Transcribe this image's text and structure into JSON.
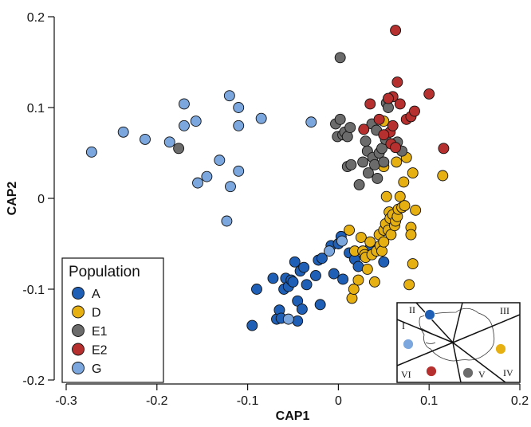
{
  "chart_data": {
    "type": "scatter",
    "xlabel": "CAP1",
    "ylabel": "CAP2",
    "xlim": [
      -0.3,
      0.2
    ],
    "ylim": [
      -0.2,
      0.2
    ],
    "xticks": [
      "-0.3",
      "-0.2",
      "-0.1",
      "0",
      "0.1",
      "0.2"
    ],
    "yticks": [
      "-0.2",
      "-0.1",
      "0",
      "0.1",
      "0.2"
    ],
    "grid": false,
    "legend": {
      "title": "Population",
      "position": "bottom-left"
    },
    "series": [
      {
        "name": "A",
        "color": "#1f5fb5",
        "points": [
          [
            -0.095,
            -0.14
          ],
          [
            -0.09,
            -0.1
          ],
          [
            -0.072,
            -0.088
          ],
          [
            -0.068,
            -0.133
          ],
          [
            -0.065,
            -0.123
          ],
          [
            -0.063,
            -0.132
          ],
          [
            -0.06,
            -0.1
          ],
          [
            -0.058,
            -0.088
          ],
          [
            -0.055,
            -0.097
          ],
          [
            -0.052,
            -0.09
          ],
          [
            -0.05,
            -0.092
          ],
          [
            -0.048,
            -0.07
          ],
          [
            -0.045,
            -0.113
          ],
          [
            -0.045,
            -0.135
          ],
          [
            -0.042,
            -0.08
          ],
          [
            -0.04,
            -0.122
          ],
          [
            -0.038,
            -0.076
          ],
          [
            -0.035,
            -0.095
          ],
          [
            -0.025,
            -0.085
          ],
          [
            -0.022,
            -0.068
          ],
          [
            -0.02,
            -0.117
          ],
          [
            -0.018,
            -0.066
          ],
          [
            -0.008,
            -0.052
          ],
          [
            -0.005,
            -0.083
          ],
          [
            0.0,
            -0.05
          ],
          [
            0.003,
            -0.042
          ],
          [
            0.005,
            -0.089
          ],
          [
            0.012,
            -0.06
          ],
          [
            0.018,
            -0.067
          ],
          [
            0.022,
            -0.075
          ],
          [
            0.03,
            -0.062
          ],
          [
            0.035,
            -0.055
          ],
          [
            0.05,
            -0.07
          ]
        ]
      },
      {
        "name": "D",
        "color": "#e6b012",
        "points": [
          [
            0.012,
            -0.035
          ],
          [
            0.015,
            -0.11
          ],
          [
            0.017,
            -0.1
          ],
          [
            0.018,
            -0.058
          ],
          [
            0.022,
            -0.09
          ],
          [
            0.025,
            -0.043
          ],
          [
            0.027,
            -0.058
          ],
          [
            0.029,
            -0.062
          ],
          [
            0.03,
            -0.065
          ],
          [
            0.032,
            -0.078
          ],
          [
            0.035,
            -0.048
          ],
          [
            0.037,
            -0.062
          ],
          [
            0.04,
            -0.092
          ],
          [
            0.042,
            -0.058
          ],
          [
            0.045,
            -0.04
          ],
          [
            0.046,
            -0.052
          ],
          [
            0.048,
            -0.058
          ],
          [
            0.05,
            -0.048
          ],
          [
            0.05,
            -0.035
          ],
          [
            0.052,
            -0.028
          ],
          [
            0.053,
            0.002
          ],
          [
            0.055,
            -0.035
          ],
          [
            0.056,
            -0.015
          ],
          [
            0.057,
            -0.022
          ],
          [
            0.058,
            -0.04
          ],
          [
            0.06,
            -0.018
          ],
          [
            0.062,
            -0.03
          ],
          [
            0.063,
            -0.025
          ],
          [
            0.064,
            0.04
          ],
          [
            0.065,
            -0.02
          ],
          [
            0.066,
            -0.012
          ],
          [
            0.068,
            0.002
          ],
          [
            0.07,
            -0.01
          ],
          [
            0.072,
            0.018
          ],
          [
            0.073,
            -0.008
          ],
          [
            0.075,
            0.045
          ],
          [
            0.078,
            -0.095
          ],
          [
            0.08,
            -0.032
          ],
          [
            0.08,
            -0.04
          ],
          [
            0.082,
            -0.072
          ],
          [
            0.082,
            0.028
          ],
          [
            0.085,
            -0.013
          ],
          [
            0.05,
            0.085
          ],
          [
            0.05,
            0.035
          ],
          [
            0.06,
            0.06
          ],
          [
            0.115,
            0.025
          ]
        ]
      },
      {
        "name": "E1",
        "color": "#6b6b6b",
        "points": [
          [
            -0.176,
            0.055
          ],
          [
            0.002,
            0.155
          ],
          [
            -0.003,
            0.082
          ],
          [
            -0.001,
            0.068
          ],
          [
            0.002,
            0.087
          ],
          [
            0.005,
            0.07
          ],
          [
            0.007,
            0.073
          ],
          [
            0.01,
            0.068
          ],
          [
            0.01,
            0.035
          ],
          [
            0.013,
            0.078
          ],
          [
            0.014,
            0.037
          ],
          [
            0.023,
            0.015
          ],
          [
            0.027,
            0.04
          ],
          [
            0.03,
            0.063
          ],
          [
            0.032,
            0.052
          ],
          [
            0.033,
            0.028
          ],
          [
            0.037,
            0.082
          ],
          [
            0.038,
            0.045
          ],
          [
            0.04,
            0.037
          ],
          [
            0.042,
            0.075
          ],
          [
            0.043,
            0.022
          ],
          [
            0.045,
            0.05
          ],
          [
            0.048,
            0.055
          ],
          [
            0.05,
            0.04
          ],
          [
            0.052,
            0.065
          ],
          [
            0.053,
            0.105
          ],
          [
            0.055,
            0.1
          ],
          [
            0.065,
            0.062
          ],
          [
            0.07,
            0.052
          ]
        ]
      },
      {
        "name": "E2",
        "color": "#b5302e",
        "points": [
          [
            0.063,
            0.185
          ],
          [
            0.065,
            0.128
          ],
          [
            0.06,
            0.112
          ],
          [
            0.035,
            0.104
          ],
          [
            0.055,
            0.11
          ],
          [
            0.057,
            0.073
          ],
          [
            0.06,
            0.08
          ],
          [
            0.068,
            0.104
          ],
          [
            0.075,
            0.087
          ],
          [
            0.08,
            0.09
          ],
          [
            0.084,
            0.096
          ],
          [
            0.1,
            0.115
          ],
          [
            0.116,
            0.055
          ],
          [
            0.028,
            0.076
          ],
          [
            0.045,
            0.087
          ],
          [
            0.05,
            0.07
          ],
          [
            0.058,
            0.06
          ],
          [
            0.063,
            0.056
          ]
        ]
      },
      {
        "name": "G",
        "color": "#7ba7de",
        "points": [
          [
            -0.272,
            0.051
          ],
          [
            -0.237,
            0.073
          ],
          [
            -0.213,
            0.065
          ],
          [
            -0.186,
            0.062
          ],
          [
            -0.17,
            0.104
          ],
          [
            -0.17,
            0.08
          ],
          [
            -0.157,
            0.085
          ],
          [
            -0.155,
            0.017
          ],
          [
            -0.145,
            0.024
          ],
          [
            -0.131,
            0.042
          ],
          [
            -0.123,
            -0.025
          ],
          [
            -0.12,
            0.113
          ],
          [
            -0.119,
            0.013
          ],
          [
            -0.11,
            0.1
          ],
          [
            -0.11,
            0.08
          ],
          [
            -0.11,
            0.03
          ],
          [
            -0.085,
            0.088
          ],
          [
            -0.055,
            -0.133
          ],
          [
            -0.03,
            0.084
          ],
          [
            -0.01,
            -0.058
          ],
          [
            0.004,
            -0.047
          ]
        ]
      }
    ],
    "inset_map": {
      "sector_labels": [
        "I",
        "II",
        "III",
        "IV",
        "V",
        "VI"
      ]
    }
  }
}
